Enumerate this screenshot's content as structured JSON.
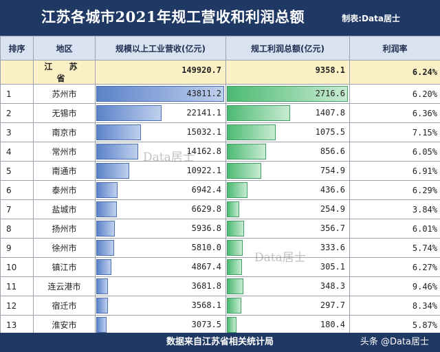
{
  "header": {
    "title": "江苏各城市2021年规工营收和利润总额",
    "credit": "制表:Data居士"
  },
  "columns": [
    "排序",
    "地区",
    "规模以上工业营收(亿元)",
    "规工利润总额(亿元)",
    "利润率"
  ],
  "total": {
    "name": "江 苏 省",
    "revenue": "149920.7",
    "profit": "9358.1",
    "rate": "6.24%"
  },
  "chart_data": {
    "type": "table",
    "title": "江苏各城市2021年规工营收和利润总额",
    "rows": [
      {
        "rank": "1",
        "city": "苏州市",
        "revenue": 43811.2,
        "profit": 2716.6,
        "rate": "6.20%"
      },
      {
        "rank": "2",
        "city": "无锡市",
        "revenue": 22141.1,
        "profit": 1407.8,
        "rate": "6.36%"
      },
      {
        "rank": "3",
        "city": "南京市",
        "revenue": 15032.1,
        "profit": 1075.5,
        "rate": "7.15%"
      },
      {
        "rank": "4",
        "city": "常州市",
        "revenue": 14162.8,
        "profit": 856.6,
        "rate": "6.05%"
      },
      {
        "rank": "5",
        "city": "南通市",
        "revenue": 10922.1,
        "profit": 754.9,
        "rate": "6.91%"
      },
      {
        "rank": "6",
        "city": "泰州市",
        "revenue": 6942.4,
        "profit": 436.6,
        "rate": "6.29%"
      },
      {
        "rank": "7",
        "city": "盐城市",
        "revenue": 6629.8,
        "profit": 254.9,
        "rate": "3.84%"
      },
      {
        "rank": "8",
        "city": "扬州市",
        "revenue": 5936.8,
        "profit": 356.7,
        "rate": "6.01%"
      },
      {
        "rank": "9",
        "city": "徐州市",
        "revenue": 5810.0,
        "profit": 333.6,
        "rate": "5.74%"
      },
      {
        "rank": "10",
        "city": "镇江市",
        "revenue": 4867.4,
        "profit": 305.1,
        "rate": "6.27%"
      },
      {
        "rank": "11",
        "city": "连云港市",
        "revenue": 3681.8,
        "profit": 348.3,
        "rate": "9.46%"
      },
      {
        "rank": "12",
        "city": "宿迁市",
        "revenue": 3568.1,
        "profit": 297.7,
        "rate": "8.34%"
      },
      {
        "rank": "13",
        "city": "淮安市",
        "revenue": 3073.5,
        "profit": 180.4,
        "rate": "5.87%"
      }
    ]
  },
  "footer": {
    "source": "数据来自江苏省相关统计局",
    "handle": "头条 @Data居士"
  },
  "watermark": "Data居士"
}
